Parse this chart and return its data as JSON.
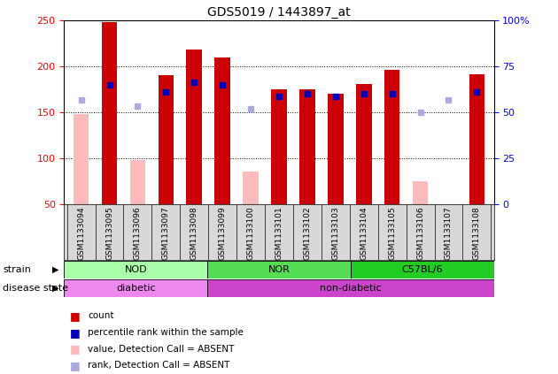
{
  "title": "GDS5019 / 1443897_at",
  "samples": [
    "GSM1133094",
    "GSM1133095",
    "GSM1133096",
    "GSM1133097",
    "GSM1133098",
    "GSM1133099",
    "GSM1133100",
    "GSM1133101",
    "GSM1133102",
    "GSM1133103",
    "GSM1133104",
    "GSM1133105",
    "GSM1133106",
    "GSM1133107",
    "GSM1133108"
  ],
  "count": [
    0,
    248,
    0,
    190,
    218,
    210,
    0,
    175,
    175,
    170,
    181,
    196,
    0,
    0,
    191
  ],
  "count_absent": [
    148,
    0,
    98,
    0,
    0,
    0,
    85,
    0,
    0,
    0,
    0,
    0,
    75,
    0,
    0
  ],
  "percentile_rank": [
    0,
    180,
    0,
    172,
    183,
    180,
    0,
    167,
    170,
    167,
    170,
    170,
    0,
    0,
    172
  ],
  "percentile_rank_absent": [
    163,
    0,
    157,
    0,
    0,
    0,
    154,
    0,
    0,
    0,
    0,
    0,
    150,
    163,
    0
  ],
  "ylim_left": [
    50,
    250
  ],
  "ylim_right": [
    0,
    100
  ],
  "yticks_left": [
    50,
    100,
    150,
    200,
    250
  ],
  "yticks_right": [
    0,
    25,
    50,
    75,
    100
  ],
  "ytick_labels_right": [
    "0",
    "25",
    "50",
    "75",
    "100%"
  ],
  "strain_groups": [
    {
      "label": "NOD",
      "start": 0,
      "end": 4,
      "color": "#aaffaa"
    },
    {
      "label": "NOR",
      "start": 5,
      "end": 9,
      "color": "#55dd55"
    },
    {
      "label": "C57BL/6",
      "start": 10,
      "end": 14,
      "color": "#22cc22"
    }
  ],
  "disease_groups": [
    {
      "label": "diabetic",
      "start": 0,
      "end": 4,
      "color": "#ee88ee"
    },
    {
      "label": "non-diabetic",
      "start": 5,
      "end": 14,
      "color": "#cc44cc"
    }
  ],
  "bar_color_red": "#cc0000",
  "bar_color_pink": "#ffbbbb",
  "sq_color_blue": "#0000bb",
  "sq_color_lightblue": "#aaaadd",
  "strain_label": "strain",
  "disease_label": "disease state",
  "legend": [
    {
      "color": "#cc0000",
      "label": "count"
    },
    {
      "color": "#0000bb",
      "label": "percentile rank within the sample"
    },
    {
      "color": "#ffbbbb",
      "label": "value, Detection Call = ABSENT"
    },
    {
      "color": "#aaaadd",
      "label": "rank, Detection Call = ABSENT"
    }
  ]
}
